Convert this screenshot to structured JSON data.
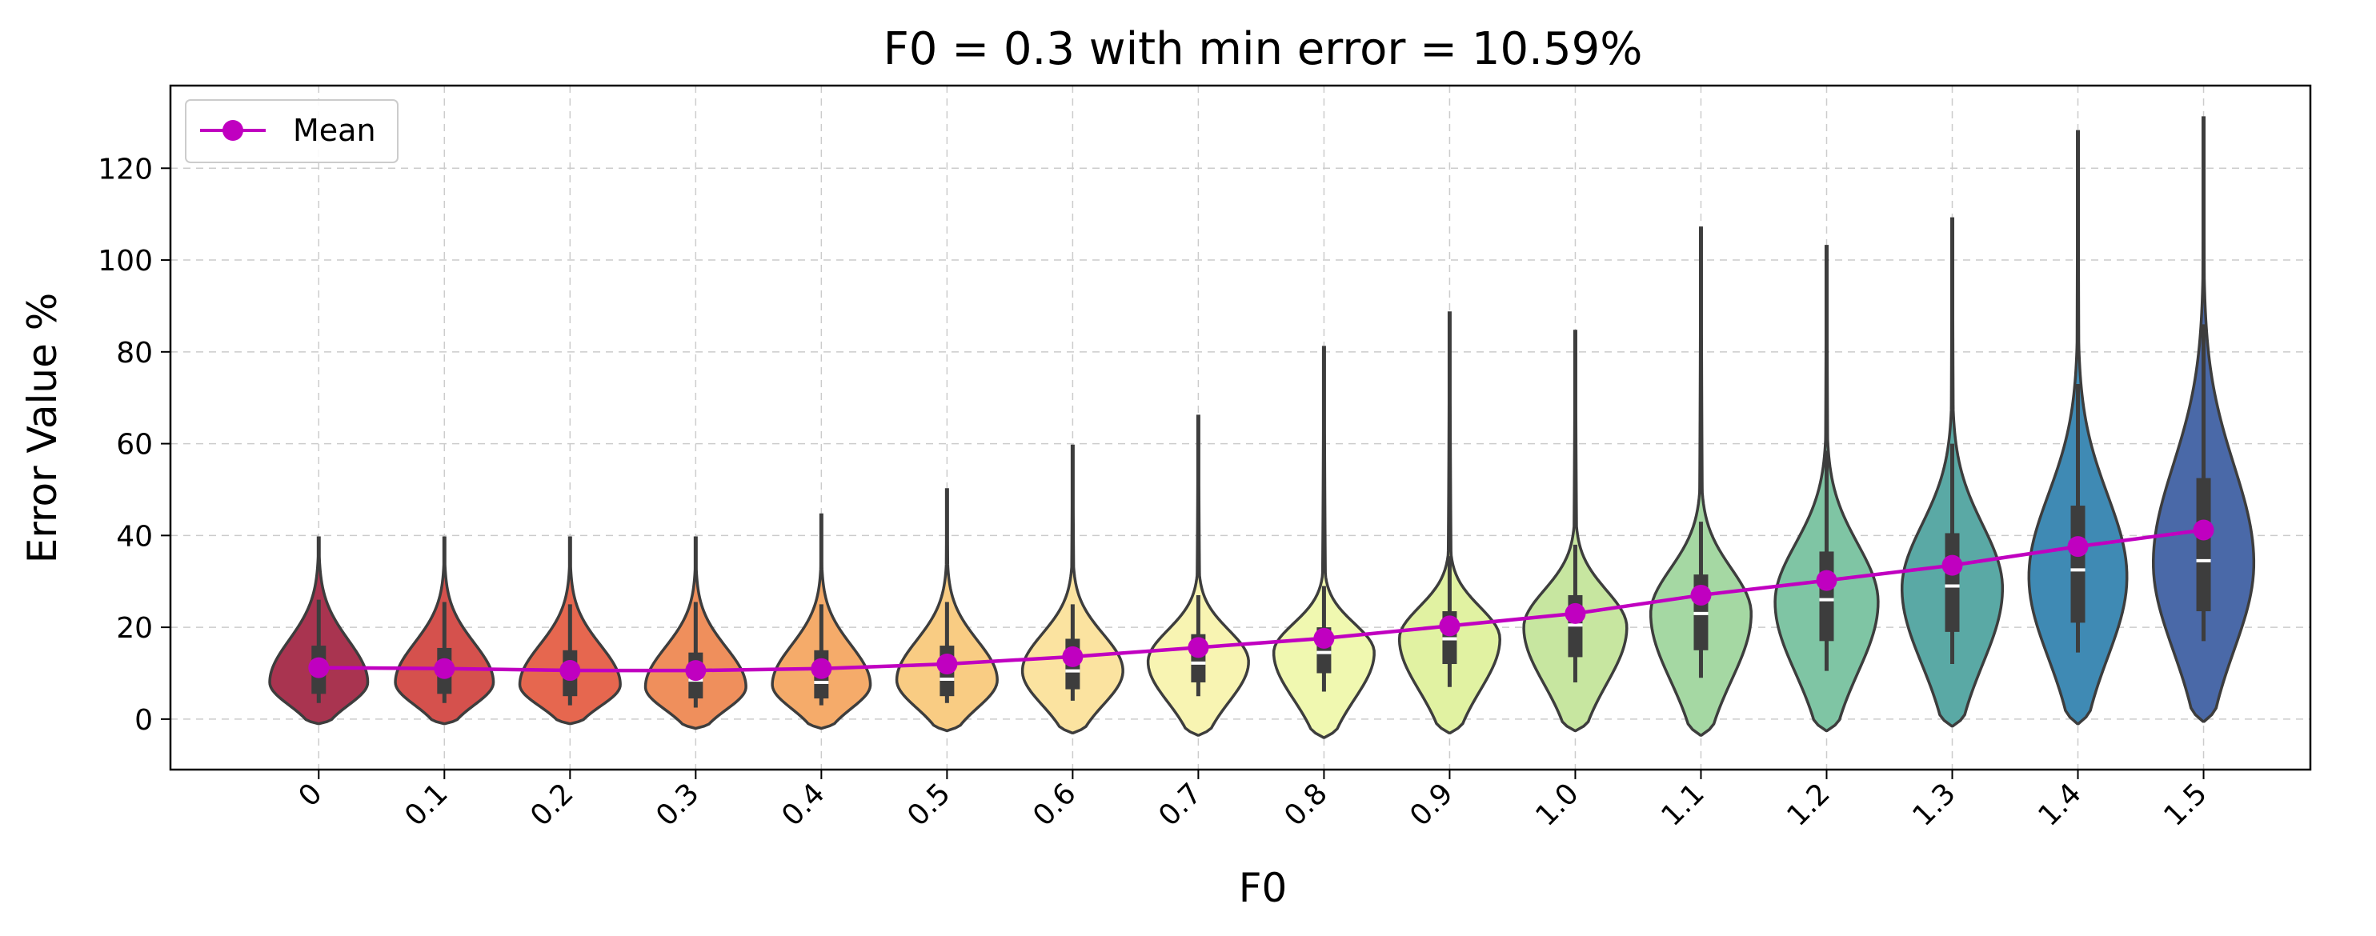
{
  "chart_data": {
    "type": "violin",
    "title": "F0 = 0.3 with min error = 10.59%",
    "xlabel": "F0",
    "ylabel": "Error Value %",
    "ylim": [
      -11,
      138
    ],
    "yticks": [
      0,
      20,
      40,
      60,
      80,
      100,
      120
    ],
    "grid": true,
    "legend": {
      "placement": "top-left",
      "entries": [
        {
          "label": "Mean",
          "color": "#c000c0",
          "marker": "circle"
        }
      ]
    },
    "categories": [
      "0",
      "0.1",
      "0.2",
      "0.3",
      "0.4",
      "0.5",
      "0.6",
      "0.7",
      "0.8",
      "0.9",
      "1.0",
      "1.1",
      "1.2",
      "1.3",
      "1.4",
      "1.5"
    ],
    "colors": [
      "#a93450",
      "#d5514d",
      "#e6674f",
      "#ef8f5c",
      "#f5ab6a",
      "#f9cc83",
      "#fbe3a0",
      "#f8f4b2",
      "#f0f8b0",
      "#e1f2a2",
      "#c7e6a0",
      "#a5d8a3",
      "#7fc5a4",
      "#5aa9a5",
      "#3f8ab4",
      "#4a69a8"
    ],
    "mean_color": "#c000c0",
    "mean": [
      11.2,
      11.0,
      10.6,
      10.59,
      11.0,
      12.0,
      13.6,
      15.6,
      17.6,
      20.3,
      23.0,
      27.0,
      30.2,
      33.5,
      37.6,
      41.2
    ],
    "median": [
      11.0,
      10.3,
      9.5,
      8.5,
      8.0,
      8.7,
      10.5,
      12.2,
      14.5,
      17.5,
      20.5,
      23.0,
      26.0,
      29.0,
      32.5,
      34.5
    ],
    "q1": [
      5.5,
      5.5,
      5.0,
      4.5,
      4.5,
      5.0,
      6.5,
      8.0,
      10.0,
      12.0,
      13.5,
      15.0,
      17.0,
      19.0,
      21.0,
      23.5
    ],
    "q3": [
      16.0,
      15.5,
      15.0,
      14.5,
      15.0,
      16.0,
      17.5,
      18.5,
      20.0,
      23.5,
      27.0,
      31.5,
      36.5,
      40.5,
      46.5,
      52.5
    ],
    "whisker_low": [
      3.5,
      3.5,
      3.0,
      2.5,
      3.0,
      3.5,
      4.0,
      5.0,
      6.0,
      7.0,
      8.0,
      9.0,
      10.5,
      12.0,
      14.5,
      17.0
    ],
    "whisker_high": [
      26.0,
      25.5,
      25.0,
      25.5,
      25.0,
      25.5,
      25.0,
      27.0,
      29.0,
      35.5,
      38.0,
      43.0,
      58.5,
      60.0,
      73.0,
      86.0
    ],
    "violin_min": [
      -1.0,
      -1.0,
      -1.0,
      -2.0,
      -2.0,
      -2.5,
      -3.0,
      -3.5,
      -4.0,
      -3.0,
      -2.5,
      -3.5,
      -2.5,
      -1.5,
      -1.0,
      -0.5
    ],
    "violin_max": [
      39.5,
      39.5,
      39.5,
      39.5,
      44.5,
      50.0,
      59.5,
      66.0,
      81.0,
      88.5,
      84.5,
      107.0,
      103.0,
      109.0,
      128.0,
      131.0
    ],
    "violin_mode": [
      8.0,
      8.0,
      7.5,
      7.0,
      7.5,
      8.5,
      10.5,
      12.5,
      14.5,
      17.5,
      20.0,
      23.0,
      25.5,
      28.5,
      31.0,
      34.0
    ],
    "violin_halfwidth": [
      0.39,
      0.39,
      0.4,
      0.4,
      0.39,
      0.4,
      0.4,
      0.4,
      0.4,
      0.4,
      0.41,
      0.4,
      0.41,
      0.4,
      0.39,
      0.4
    ]
  }
}
